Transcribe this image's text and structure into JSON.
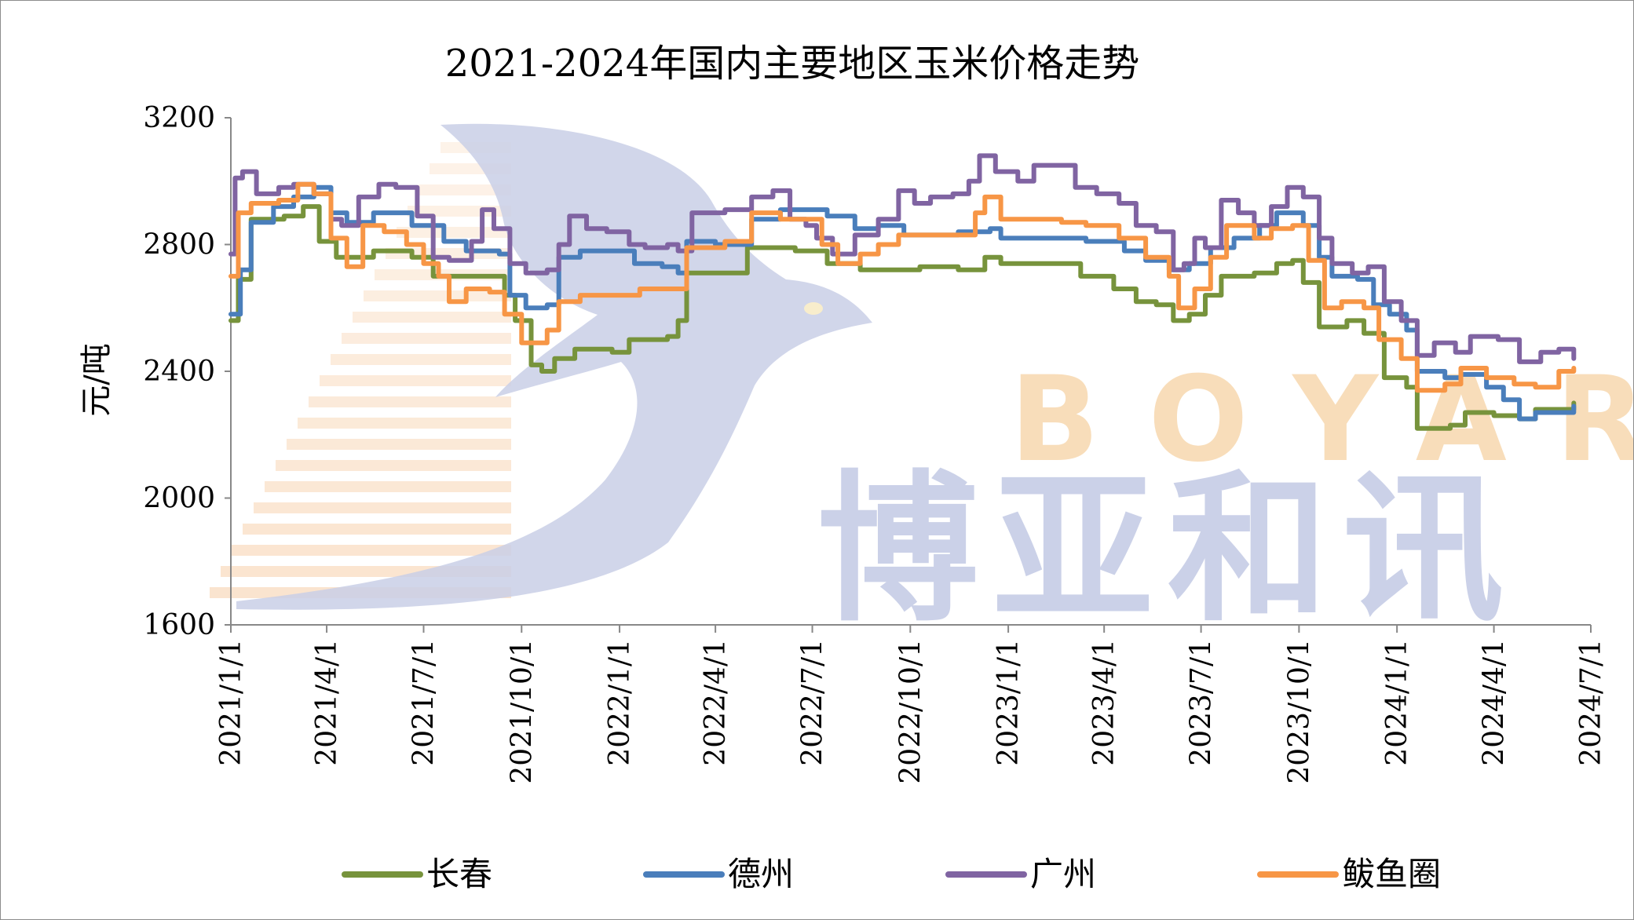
{
  "chart_data": {
    "type": "line",
    "title": "2021-2024年国内主要地区玉米价格走势",
    "ylabel": "元/吨",
    "xlabel": "",
    "ylim": [
      1600,
      3200
    ],
    "yticks": [
      1600,
      2000,
      2400,
      2800,
      3200
    ],
    "xlim": [
      "2021-01-01",
      "2024-07-01"
    ],
    "xticks": [
      "2021/1/1",
      "2021/4/1",
      "2021/7/1",
      "2021/10/1",
      "2022/1/1",
      "2022/4/1",
      "2022/7/1",
      "2022/10/1",
      "2023/1/1",
      "2023/4/1",
      "2023/7/1",
      "2023/10/1",
      "2024/1/1",
      "2024/4/1",
      "2024/7/1"
    ],
    "legend": "bottom",
    "grid": false,
    "series": [
      {
        "name": "长春",
        "color": "#77933C",
        "points": [
          [
            "2021-01-01",
            2560
          ],
          [
            "2021-01-08",
            2690
          ],
          [
            "2021-01-20",
            2880
          ],
          [
            "2021-02-20",
            2890
          ],
          [
            "2021-03-10",
            2920
          ],
          [
            "2021-03-25",
            2810
          ],
          [
            "2021-04-10",
            2760
          ],
          [
            "2021-05-15",
            2780
          ],
          [
            "2021-06-20",
            2760
          ],
          [
            "2021-07-10",
            2700
          ],
          [
            "2021-08-20",
            2700
          ],
          [
            "2021-09-15",
            2640
          ],
          [
            "2021-09-25",
            2560
          ],
          [
            "2021-10-10",
            2420
          ],
          [
            "2021-10-20",
            2400
          ],
          [
            "2021-11-01",
            2440
          ],
          [
            "2021-11-20",
            2470
          ],
          [
            "2021-12-25",
            2460
          ],
          [
            "2022-01-10",
            2500
          ],
          [
            "2022-02-15",
            2510
          ],
          [
            "2022-02-25",
            2560
          ],
          [
            "2022-03-05",
            2710
          ],
          [
            "2022-04-15",
            2710
          ],
          [
            "2022-05-01",
            2790
          ],
          [
            "2022-06-15",
            2780
          ],
          [
            "2022-07-15",
            2740
          ],
          [
            "2022-08-15",
            2720
          ],
          [
            "2022-10-10",
            2730
          ],
          [
            "2022-11-15",
            2720
          ],
          [
            "2022-12-10",
            2760
          ],
          [
            "2022-12-25",
            2740
          ],
          [
            "2023-02-20",
            2740
          ],
          [
            "2023-03-10",
            2700
          ],
          [
            "2023-04-10",
            2660
          ],
          [
            "2023-05-01",
            2620
          ],
          [
            "2023-05-20",
            2610
          ],
          [
            "2023-06-05",
            2560
          ],
          [
            "2023-06-20",
            2580
          ],
          [
            "2023-07-05",
            2640
          ],
          [
            "2023-07-20",
            2700
          ],
          [
            "2023-08-20",
            2710
          ],
          [
            "2023-09-10",
            2740
          ],
          [
            "2023-09-25",
            2750
          ],
          [
            "2023-10-05",
            2680
          ],
          [
            "2023-10-20",
            2540
          ],
          [
            "2023-11-15",
            2560
          ],
          [
            "2023-12-01",
            2520
          ],
          [
            "2023-12-20",
            2380
          ],
          [
            "2024-01-10",
            2350
          ],
          [
            "2024-01-20",
            2220
          ],
          [
            "2024-02-20",
            2230
          ],
          [
            "2024-03-05",
            2270
          ],
          [
            "2024-04-01",
            2260
          ],
          [
            "2024-04-25",
            2250
          ],
          [
            "2024-05-10",
            2280
          ],
          [
            "2024-06-15",
            2300
          ]
        ]
      },
      {
        "name": "德州",
        "color": "#4A7EBB",
        "points": [
          [
            "2021-01-01",
            2580
          ],
          [
            "2021-01-10",
            2720
          ],
          [
            "2021-01-20",
            2870
          ],
          [
            "2021-02-10",
            2920
          ],
          [
            "2021-03-01",
            2950
          ],
          [
            "2021-03-20",
            2980
          ],
          [
            "2021-04-05",
            2900
          ],
          [
            "2021-04-20",
            2870
          ],
          [
            "2021-05-15",
            2900
          ],
          [
            "2021-06-20",
            2860
          ],
          [
            "2021-07-20",
            2810
          ],
          [
            "2021-08-10",
            2780
          ],
          [
            "2021-09-10",
            2770
          ],
          [
            "2021-09-20",
            2640
          ],
          [
            "2021-10-05",
            2600
          ],
          [
            "2021-10-25",
            2610
          ],
          [
            "2021-11-05",
            2760
          ],
          [
            "2021-11-25",
            2780
          ],
          [
            "2021-12-20",
            2780
          ],
          [
            "2022-01-15",
            2740
          ],
          [
            "2022-02-10",
            2730
          ],
          [
            "2022-02-25",
            2710
          ],
          [
            "2022-03-05",
            2810
          ],
          [
            "2022-04-01",
            2800
          ],
          [
            "2022-05-05",
            2880
          ],
          [
            "2022-06-01",
            2910
          ],
          [
            "2022-07-15",
            2890
          ],
          [
            "2022-08-10",
            2850
          ],
          [
            "2022-09-01",
            2860
          ],
          [
            "2022-09-25",
            2830
          ],
          [
            "2022-11-15",
            2840
          ],
          [
            "2022-12-15",
            2850
          ],
          [
            "2022-12-25",
            2820
          ],
          [
            "2023-03-15",
            2810
          ],
          [
            "2023-04-20",
            2780
          ],
          [
            "2023-05-10",
            2750
          ],
          [
            "2023-06-01",
            2720
          ],
          [
            "2023-06-20",
            2740
          ],
          [
            "2023-07-10",
            2790
          ],
          [
            "2023-08-01",
            2820
          ],
          [
            "2023-08-25",
            2860
          ],
          [
            "2023-09-10",
            2900
          ],
          [
            "2023-09-25",
            2900
          ],
          [
            "2023-10-05",
            2860
          ],
          [
            "2023-10-20",
            2760
          ],
          [
            "2023-11-01",
            2700
          ],
          [
            "2023-11-25",
            2690
          ],
          [
            "2023-12-10",
            2610
          ],
          [
            "2023-12-25",
            2580
          ],
          [
            "2024-01-10",
            2530
          ],
          [
            "2024-01-20",
            2400
          ],
          [
            "2024-02-15",
            2380
          ],
          [
            "2024-03-01",
            2390
          ],
          [
            "2024-03-25",
            2350
          ],
          [
            "2024-04-10",
            2310
          ],
          [
            "2024-04-25",
            2250
          ],
          [
            "2024-05-10",
            2270
          ],
          [
            "2024-06-15",
            2290
          ]
        ]
      },
      {
        "name": "广州",
        "color": "#8064A2",
        "points": [
          [
            "2021-01-01",
            2770
          ],
          [
            "2021-01-05",
            3010
          ],
          [
            "2021-01-12",
            3030
          ],
          [
            "2021-01-25",
            2960
          ],
          [
            "2021-02-15",
            2980
          ],
          [
            "2021-03-01",
            2990
          ],
          [
            "2021-03-20",
            2960
          ],
          [
            "2021-04-05",
            2880
          ],
          [
            "2021-04-15",
            2860
          ],
          [
            "2021-05-01",
            2950
          ],
          [
            "2021-05-20",
            2990
          ],
          [
            "2021-06-05",
            2980
          ],
          [
            "2021-06-25",
            2890
          ],
          [
            "2021-07-10",
            2760
          ],
          [
            "2021-07-25",
            2750
          ],
          [
            "2021-08-15",
            2810
          ],
          [
            "2021-08-25",
            2910
          ],
          [
            "2021-09-05",
            2850
          ],
          [
            "2021-09-20",
            2740
          ],
          [
            "2021-10-05",
            2710
          ],
          [
            "2021-10-25",
            2720
          ],
          [
            "2021-11-05",
            2800
          ],
          [
            "2021-11-15",
            2890
          ],
          [
            "2021-12-01",
            2850
          ],
          [
            "2021-12-20",
            2840
          ],
          [
            "2022-01-10",
            2800
          ],
          [
            "2022-01-25",
            2790
          ],
          [
            "2022-02-15",
            2800
          ],
          [
            "2022-02-25",
            2780
          ],
          [
            "2022-03-10",
            2900
          ],
          [
            "2022-04-10",
            2910
          ],
          [
            "2022-05-05",
            2950
          ],
          [
            "2022-05-25",
            2970
          ],
          [
            "2022-06-10",
            2880
          ],
          [
            "2022-06-25",
            2860
          ],
          [
            "2022-07-05",
            2820
          ],
          [
            "2022-07-20",
            2770
          ],
          [
            "2022-08-10",
            2830
          ],
          [
            "2022-09-01",
            2880
          ],
          [
            "2022-09-20",
            2970
          ],
          [
            "2022-10-05",
            2930
          ],
          [
            "2022-10-20",
            2950
          ],
          [
            "2022-11-10",
            2960
          ],
          [
            "2022-11-25",
            3000
          ],
          [
            "2022-12-05",
            3080
          ],
          [
            "2022-12-20",
            3030
          ],
          [
            "2023-01-10",
            3000
          ],
          [
            "2023-01-25",
            3050
          ],
          [
            "2023-02-20",
            3050
          ],
          [
            "2023-03-05",
            2980
          ],
          [
            "2023-03-25",
            2960
          ],
          [
            "2023-04-15",
            2930
          ],
          [
            "2023-05-01",
            2860
          ],
          [
            "2023-05-20",
            2840
          ],
          [
            "2023-06-05",
            2720
          ],
          [
            "2023-06-15",
            2740
          ],
          [
            "2023-06-25",
            2820
          ],
          [
            "2023-07-05",
            2790
          ],
          [
            "2023-07-20",
            2940
          ],
          [
            "2023-08-05",
            2900
          ],
          [
            "2023-08-20",
            2860
          ],
          [
            "2023-09-05",
            2920
          ],
          [
            "2023-09-20",
            2980
          ],
          [
            "2023-10-05",
            2950
          ],
          [
            "2023-10-20",
            2820
          ],
          [
            "2023-11-01",
            2740
          ],
          [
            "2023-11-20",
            2710
          ],
          [
            "2023-12-05",
            2730
          ],
          [
            "2023-12-20",
            2620
          ],
          [
            "2024-01-05",
            2560
          ],
          [
            "2024-01-20",
            2450
          ],
          [
            "2024-02-05",
            2490
          ],
          [
            "2024-02-25",
            2460
          ],
          [
            "2024-03-10",
            2510
          ],
          [
            "2024-04-05",
            2500
          ],
          [
            "2024-04-25",
            2430
          ],
          [
            "2024-05-15",
            2460
          ],
          [
            "2024-06-01",
            2470
          ],
          [
            "2024-06-15",
            2440
          ]
        ]
      },
      {
        "name": "鲅鱼圈",
        "color": "#F79646",
        "points": [
          [
            "2021-01-01",
            2700
          ],
          [
            "2021-01-08",
            2900
          ],
          [
            "2021-01-20",
            2930
          ],
          [
            "2021-02-15",
            2940
          ],
          [
            "2021-03-05",
            2990
          ],
          [
            "2021-03-20",
            2960
          ],
          [
            "2021-04-05",
            2820
          ],
          [
            "2021-04-20",
            2730
          ],
          [
            "2021-05-05",
            2860
          ],
          [
            "2021-05-25",
            2840
          ],
          [
            "2021-06-15",
            2800
          ],
          [
            "2021-07-01",
            2740
          ],
          [
            "2021-07-15",
            2700
          ],
          [
            "2021-07-25",
            2620
          ],
          [
            "2021-08-10",
            2660
          ],
          [
            "2021-09-01",
            2650
          ],
          [
            "2021-09-15",
            2580
          ],
          [
            "2021-10-01",
            2490
          ],
          [
            "2021-10-15",
            2490
          ],
          [
            "2021-10-25",
            2530
          ],
          [
            "2021-11-05",
            2620
          ],
          [
            "2021-11-25",
            2640
          ],
          [
            "2021-12-20",
            2640
          ],
          [
            "2022-01-20",
            2660
          ],
          [
            "2022-02-25",
            2660
          ],
          [
            "2022-03-05",
            2790
          ],
          [
            "2022-04-10",
            2810
          ],
          [
            "2022-05-05",
            2900
          ],
          [
            "2022-06-01",
            2880
          ],
          [
            "2022-06-20",
            2880
          ],
          [
            "2022-07-10",
            2800
          ],
          [
            "2022-07-25",
            2740
          ],
          [
            "2022-08-15",
            2770
          ],
          [
            "2022-09-01",
            2800
          ],
          [
            "2022-09-20",
            2830
          ],
          [
            "2022-11-15",
            2830
          ],
          [
            "2022-12-01",
            2900
          ],
          [
            "2022-12-10",
            2950
          ],
          [
            "2022-12-25",
            2880
          ],
          [
            "2023-01-15",
            2880
          ],
          [
            "2023-02-20",
            2870
          ],
          [
            "2023-03-15",
            2860
          ],
          [
            "2023-04-15",
            2820
          ],
          [
            "2023-05-10",
            2760
          ],
          [
            "2023-06-01",
            2700
          ],
          [
            "2023-06-10",
            2600
          ],
          [
            "2023-06-25",
            2660
          ],
          [
            "2023-07-10",
            2760
          ],
          [
            "2023-07-25",
            2860
          ],
          [
            "2023-08-20",
            2820
          ],
          [
            "2023-09-05",
            2850
          ],
          [
            "2023-09-25",
            2860
          ],
          [
            "2023-10-10",
            2750
          ],
          [
            "2023-10-25",
            2600
          ],
          [
            "2023-11-10",
            2620
          ],
          [
            "2023-12-01",
            2600
          ],
          [
            "2023-12-15",
            2500
          ],
          [
            "2024-01-05",
            2440
          ],
          [
            "2024-01-20",
            2340
          ],
          [
            "2024-02-15",
            2360
          ],
          [
            "2024-03-01",
            2410
          ],
          [
            "2024-03-25",
            2380
          ],
          [
            "2024-04-20",
            2360
          ],
          [
            "2024-05-10",
            2350
          ],
          [
            "2024-06-01",
            2400
          ],
          [
            "2024-06-15",
            2410
          ]
        ]
      }
    ]
  },
  "watermark": {
    "latin": "BOYAR",
    "chinese": "博亚和讯"
  }
}
